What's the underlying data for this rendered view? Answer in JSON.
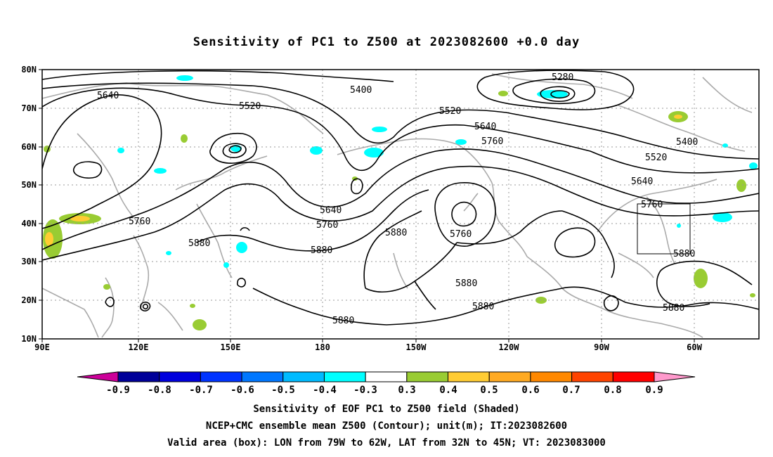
{
  "title": "Sensitivity of PC1 to Z500 at 2023082600 +0.0 day",
  "lat_ticks": [
    "80N",
    "70N",
    "60N",
    "50N",
    "40N",
    "30N",
    "20N",
    "10N"
  ],
  "lon_ticks": [
    "90E",
    "120E",
    "150E",
    "180",
    "150W",
    "120W",
    "90W",
    "60W"
  ],
  "contour_labels": [
    {
      "text": "5280"
    },
    {
      "text": "5400"
    },
    {
      "text": "5400"
    },
    {
      "text": "5520"
    },
    {
      "text": "5520"
    },
    {
      "text": "5520"
    },
    {
      "text": "5640"
    },
    {
      "text": "5640"
    },
    {
      "text": "5640"
    },
    {
      "text": "5640"
    },
    {
      "text": "5760"
    },
    {
      "text": "5760"
    },
    {
      "text": "5760"
    },
    {
      "text": "5760"
    },
    {
      "text": "5760"
    },
    {
      "text": "5880"
    },
    {
      "text": "5880"
    },
    {
      "text": "5880"
    },
    {
      "text": "5880"
    },
    {
      "text": "5880"
    },
    {
      "text": "5880"
    },
    {
      "text": "5880"
    },
    {
      "text": "5880"
    }
  ],
  "colorbar": {
    "labels": [
      "-0.9",
      "-0.8",
      "-0.7",
      "-0.6",
      "-0.5",
      "-0.4",
      "-0.3",
      "0.3",
      "0.4",
      "0.5",
      "0.6",
      "0.7",
      "0.8",
      "0.9"
    ],
    "colors": [
      "#000099",
      "#0000dd",
      "#0033ff",
      "#0077ff",
      "#00bbff",
      "#00ffff",
      "#ffffff",
      "#99cc33",
      "#ffcc33",
      "#ffaa22",
      "#ff8800",
      "#ff4400",
      "#ff0000"
    ],
    "low_end_color": "#cc0099",
    "high_end_color": "#ff99cc"
  },
  "footer": {
    "line1": "Sensitivity of EOF PC1 to Z500 field (Shaded)",
    "line2": "NCEP+CMC ensemble mean Z500 (Contour); unit(m); IT:2023082600",
    "line3": "Valid area (box): LON from 79W to 62W, LAT from 32N to 45N; VT: 2023083000"
  },
  "valid_box": {
    "lon_min": "79W",
    "lon_max": "62W",
    "lat_min": "32N",
    "lat_max": "45N"
  }
}
